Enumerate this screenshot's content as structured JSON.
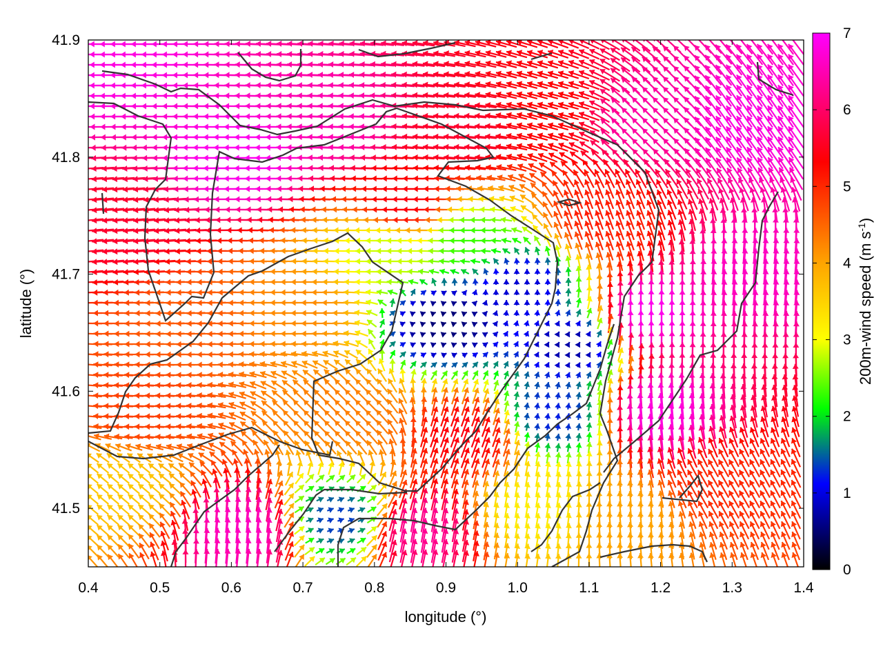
{
  "chart_data": {
    "type": "vector-field",
    "title": "",
    "xlabel": "longitude (°)",
    "ylabel": "latitude (°)",
    "xlim": [
      0.4,
      1.4
    ],
    "ylim": [
      41.45,
      41.9
    ],
    "xticks": [
      0.4,
      0.5,
      0.6,
      0.7,
      0.8,
      0.9,
      1.0,
      1.1,
      1.2,
      1.3,
      1.4
    ],
    "xtick_labels": [
      "0.4",
      "0.5",
      "0.6",
      "0.7",
      "0.8",
      "0.9",
      "1.0",
      "1.1",
      "1.2",
      "1.3",
      "1.4"
    ],
    "yticks": [
      41.5,
      41.6,
      41.7,
      41.8,
      41.9
    ],
    "ytick_labels": [
      "41.5",
      "41.6",
      "41.7",
      "41.8",
      "41.9"
    ],
    "colorbar": {
      "label_main": "200m-wind speed (m s",
      "label_sup": "-1",
      "label_end": ")",
      "min": 0,
      "max": 7,
      "ticks": [
        0,
        1,
        2,
        3,
        4,
        5,
        6,
        7
      ],
      "tick_labels": [
        "0",
        "1",
        "2",
        "3",
        "4",
        "5",
        "6",
        "7"
      ],
      "palette": [
        "#000000",
        "#0000ff",
        "#00ff00",
        "#ffff00",
        "#ffa500",
        "#ff0000",
        "#ff00ff"
      ]
    },
    "grid": false,
    "legend": "none",
    "wind_regions": [
      {
        "lon": 0.62,
        "lat": 41.8,
        "speed": 6.9,
        "direction_deg": 180
      },
      {
        "lon": 0.45,
        "lat": 41.88,
        "speed": 6.8,
        "direction_deg": 180
      },
      {
        "lon": 0.75,
        "lat": 41.83,
        "speed": 6.5,
        "direction_deg": 178
      },
      {
        "lon": 0.92,
        "lat": 41.82,
        "speed": 5.6,
        "direction_deg": 175
      },
      {
        "lon": 1.05,
        "lat": 41.84,
        "speed": 5.3,
        "direction_deg": 165
      },
      {
        "lon": 1.18,
        "lat": 41.83,
        "speed": 6.4,
        "direction_deg": 135
      },
      {
        "lon": 1.33,
        "lat": 41.83,
        "speed": 6.8,
        "direction_deg": 125
      },
      {
        "lon": 1.12,
        "lat": 41.75,
        "speed": 5.1,
        "direction_deg": 110
      },
      {
        "lon": 0.85,
        "lat": 41.76,
        "speed": 5.4,
        "direction_deg": 180
      },
      {
        "lon": 0.45,
        "lat": 41.74,
        "speed": 5.6,
        "direction_deg": 185
      },
      {
        "lon": 0.55,
        "lat": 41.66,
        "speed": 4.6,
        "direction_deg": 182
      },
      {
        "lon": 0.48,
        "lat": 41.58,
        "speed": 4.8,
        "direction_deg": 178
      },
      {
        "lon": 0.7,
        "lat": 41.67,
        "speed": 4.2,
        "direction_deg": 180
      },
      {
        "lon": 0.82,
        "lat": 41.72,
        "speed": 2.8,
        "direction_deg": 180
      },
      {
        "lon": 0.93,
        "lat": 41.73,
        "speed": 2.3,
        "direction_deg": 180
      },
      {
        "lon": 1.0,
        "lat": 41.69,
        "speed": 0.9,
        "direction_deg": 90
      },
      {
        "lon": 0.9,
        "lat": 41.66,
        "speed": 0.5,
        "direction_deg": 20
      },
      {
        "lon": 1.08,
        "lat": 41.64,
        "speed": 0.7,
        "direction_deg": 60
      },
      {
        "lon": 1.05,
        "lat": 41.58,
        "speed": 1.2,
        "direction_deg": 80
      },
      {
        "lon": 1.18,
        "lat": 41.66,
        "speed": 6.9,
        "direction_deg": 90
      },
      {
        "lon": 1.2,
        "lat": 41.58,
        "speed": 6.8,
        "direction_deg": 95
      },
      {
        "lon": 1.33,
        "lat": 41.7,
        "speed": 6.6,
        "direction_deg": 85
      },
      {
        "lon": 1.28,
        "lat": 41.52,
        "speed": 5.0,
        "direction_deg": 120
      },
      {
        "lon": 1.16,
        "lat": 41.49,
        "speed": 4.0,
        "direction_deg": 95
      },
      {
        "lon": 0.93,
        "lat": 41.56,
        "speed": 5.4,
        "direction_deg": 70
      },
      {
        "lon": 0.86,
        "lat": 41.48,
        "speed": 6.3,
        "direction_deg": 80
      },
      {
        "lon": 0.62,
        "lat": 41.48,
        "speed": 6.6,
        "direction_deg": 85
      },
      {
        "lon": 0.45,
        "lat": 41.52,
        "speed": 3.6,
        "direction_deg": 140
      },
      {
        "lon": 0.76,
        "lat": 41.58,
        "speed": 4.3,
        "direction_deg": 135
      },
      {
        "lon": 0.75,
        "lat": 41.49,
        "speed": 1.3,
        "direction_deg": 20
      },
      {
        "lon": 1.02,
        "lat": 41.5,
        "speed": 3.2,
        "direction_deg": 80
      }
    ]
  }
}
